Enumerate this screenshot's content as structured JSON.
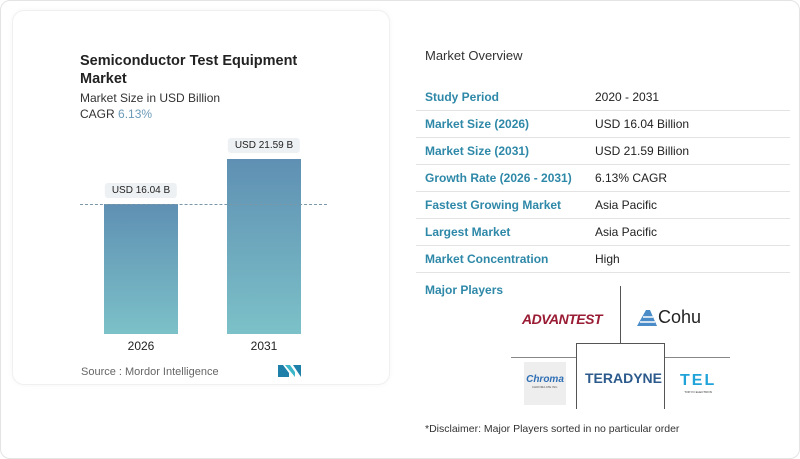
{
  "chart_data": {
    "type": "bar",
    "title": "Semiconductor Test Equipment Market",
    "subtitle": "Market Size in USD Billion",
    "cagr_label": "CAGR",
    "cagr_value": "6.13%",
    "categories": [
      "2026",
      "2031"
    ],
    "values": [
      16.04,
      21.59
    ],
    "data_labels": [
      "USD 16.04 B",
      "USD 21.59 B"
    ],
    "ylim": [
      0,
      21.59
    ],
    "grid": false,
    "reference_line": 16.04,
    "colors": {
      "bar_top": "#5f90b3",
      "bar_bottom": "#7cc1c8"
    },
    "source": "Source :  Mordor Intelligence"
  },
  "overview": {
    "title": "Market Overview",
    "rows": [
      {
        "label": "Study Period",
        "value": "2020 - 2031"
      },
      {
        "label": "Market Size (2026)",
        "value": "USD 16.04 Billion"
      },
      {
        "label": "Market Size (2031)",
        "value": "USD 21.59 Billion"
      },
      {
        "label": "Growth Rate (2026 - 2031)",
        "value": "6.13% CAGR"
      },
      {
        "label": "Fastest Growing Market",
        "value": "Asia Pacific"
      },
      {
        "label": "Largest Market",
        "value": "Asia Pacific"
      },
      {
        "label": "Market Concentration",
        "value": "High"
      }
    ]
  },
  "players": {
    "title": "Major Players",
    "logos": [
      "ADVANTEST",
      "Cohu",
      "Chroma",
      "CHROMA ATE INC.",
      "TERADYNE",
      "TEL",
      "TOKYO ELECTRON"
    ],
    "disclaimer": "*Disclaimer: Major Players sorted in no particular order"
  },
  "accent_color": "#2e88a8"
}
